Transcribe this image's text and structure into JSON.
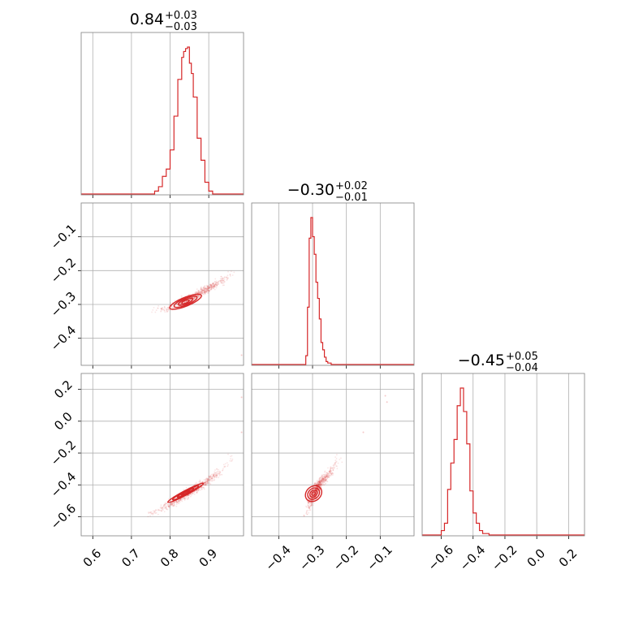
{
  "chart_data": {
    "type": "corner",
    "color": "#d62728",
    "grid": true,
    "parameters": [
      {
        "title_value": "0.84",
        "title_plus": "+0.03",
        "title_minus": "−0.03",
        "range": [
          0.57,
          0.99
        ]
      },
      {
        "title_value": "−0.30",
        "title_plus": "+0.02",
        "title_minus": "−0.01",
        "range": [
          -0.48,
          0.0
        ]
      },
      {
        "title_value": "−0.45",
        "title_plus": "+0.05",
        "title_minus": "−0.04",
        "range": [
          -0.72,
          0.3
        ]
      }
    ],
    "histograms": [
      {
        "param": 0,
        "bin_edges": [
          0.76,
          0.77,
          0.78,
          0.79,
          0.8,
          0.81,
          0.82,
          0.83,
          0.835,
          0.84,
          0.845,
          0.85,
          0.855,
          0.86,
          0.87,
          0.88,
          0.89,
          0.9,
          0.91,
          0.92
        ],
        "counts": [
          0.02,
          0.05,
          0.12,
          0.17,
          0.3,
          0.53,
          0.78,
          0.93,
          0.97,
          0.99,
          1.0,
          0.89,
          0.82,
          0.66,
          0.38,
          0.23,
          0.08,
          0.02,
          0.0
        ]
      },
      {
        "param": 1,
        "bin_edges": [
          -0.32,
          -0.315,
          -0.31,
          -0.305,
          -0.3,
          -0.295,
          -0.29,
          -0.285,
          -0.28,
          -0.275,
          -0.27,
          -0.265,
          -0.26,
          -0.255,
          -0.25,
          -0.245,
          -0.24
        ],
        "counts": [
          0.06,
          0.39,
          0.86,
          1.0,
          0.87,
          0.75,
          0.56,
          0.45,
          0.31,
          0.15,
          0.1,
          0.05,
          0.02,
          0.01,
          0.01,
          0.0
        ]
      },
      {
        "param": 2,
        "bin_edges": [
          -0.6,
          -0.58,
          -0.56,
          -0.54,
          -0.52,
          -0.5,
          -0.48,
          -0.46,
          -0.44,
          -0.42,
          -0.4,
          -0.38,
          -0.36,
          -0.34,
          -0.32,
          -0.3
        ],
        "counts": [
          0.03,
          0.08,
          0.31,
          0.49,
          0.65,
          0.88,
          1.0,
          0.84,
          0.62,
          0.3,
          0.15,
          0.08,
          0.03,
          0.01,
          0.01
        ]
      }
    ],
    "scatter_panels": [
      {
        "x_param": 0,
        "y_param": 1,
        "spine": [
          [
            0.76,
            -0.315
          ],
          [
            0.79,
            -0.312
          ],
          [
            0.82,
            -0.3
          ],
          [
            0.85,
            -0.285
          ],
          [
            0.88,
            -0.265
          ],
          [
            0.91,
            -0.245
          ],
          [
            0.94,
            -0.225
          ],
          [
            0.96,
            -0.205
          ]
        ]
      },
      {
        "x_param": 0,
        "y_param": 2,
        "spine": [
          [
            0.75,
            -0.58
          ],
          [
            0.78,
            -0.55
          ],
          [
            0.81,
            -0.51
          ],
          [
            0.84,
            -0.46
          ],
          [
            0.87,
            -0.42
          ],
          [
            0.9,
            -0.37
          ],
          [
            0.93,
            -0.31
          ],
          [
            0.96,
            -0.23
          ]
        ]
      },
      {
        "x_param": 1,
        "y_param": 2,
        "spine": [
          [
            -0.32,
            -0.58
          ],
          [
            -0.31,
            -0.53
          ],
          [
            -0.3,
            -0.48
          ],
          [
            -0.29,
            -0.43
          ],
          [
            -0.28,
            -0.39
          ],
          [
            -0.26,
            -0.35
          ],
          [
            -0.24,
            -0.3
          ],
          [
            -0.22,
            -0.23
          ]
        ]
      }
    ],
    "contours": [
      {
        "x_param": 0,
        "y_param": 1,
        "cx": 0.84,
        "cy": -0.292,
        "sx": [
          0.01,
          0.02,
          0.032,
          0.044
        ],
        "sy": [
          0.004,
          0.007,
          0.01,
          0.013
        ],
        "angle_deg": -22
      },
      {
        "x_param": 0,
        "y_param": 2,
        "cx": 0.84,
        "cy": -0.45,
        "sx": [
          0.012,
          0.024,
          0.038,
          0.052
        ],
        "sy": [
          0.004,
          0.007,
          0.011,
          0.014
        ],
        "angle_deg": -28
      },
      {
        "x_param": 1,
        "y_param": 2,
        "cx": -0.297,
        "cy": -0.455,
        "sx": [
          0.006,
          0.012,
          0.019,
          0.026
        ],
        "sy": [
          0.01,
          0.02,
          0.032,
          0.045
        ],
        "angle_deg": -40
      }
    ],
    "outliers": [
      {
        "x_param": 1,
        "y_param": 2,
        "points": [
          [
            -0.085,
            0.16
          ],
          [
            -0.08,
            0.12
          ],
          [
            -0.15,
            -0.07
          ]
        ]
      },
      {
        "x_param": 0,
        "y_param": 1,
        "points": [
          [
            0.985,
            -0.45
          ]
        ]
      },
      {
        "x_param": 0,
        "y_param": 2,
        "points": [
          [
            0.985,
            0.15
          ],
          [
            0.985,
            -0.07
          ]
        ]
      }
    ],
    "x_ticks": [
      {
        "param": 0,
        "values": [
          0.6,
          0.7,
          0.8,
          0.9
        ],
        "labels": [
          "0.6",
          "0.7",
          "0.8",
          "0.9"
        ]
      },
      {
        "param": 1,
        "values": [
          -0.4,
          -0.3,
          -0.2,
          -0.1
        ],
        "labels": [
          "−0.4",
          "−0.3",
          "−0.2",
          "−0.1"
        ]
      },
      {
        "param": 2,
        "values": [
          -0.6,
          -0.4,
          -0.2,
          0.0,
          0.2
        ],
        "labels": [
          "−0.6",
          "−0.4",
          "−0.2",
          "0.0",
          "0.2"
        ]
      }
    ],
    "y_ticks": [
      {
        "param": 1,
        "values": [
          -0.1,
          -0.2,
          -0.3,
          -0.4
        ],
        "labels": [
          "−0.1",
          "−0.2",
          "−0.3",
          "−0.4"
        ]
      },
      {
        "param": 2,
        "values": [
          0.2,
          0.0,
          -0.2,
          -0.4,
          -0.6
        ],
        "labels": [
          "0.2",
          "0.0",
          "−0.2",
          "−0.4",
          "−0.6"
        ]
      }
    ]
  }
}
